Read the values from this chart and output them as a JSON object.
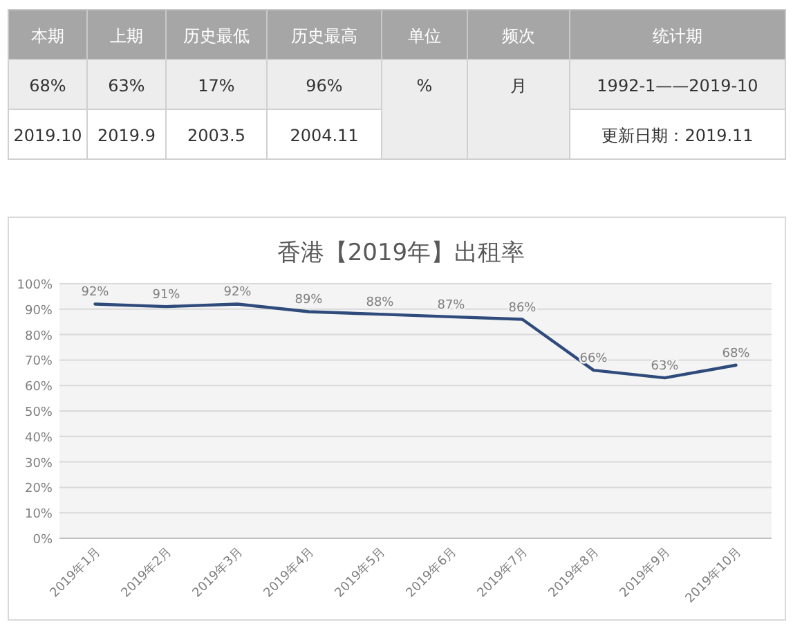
{
  "chart_data": [
    {
      "type": "other",
      "annotations": [
        "本期",
        "上期",
        "历史最低",
        "历史最高",
        "单位",
        "频次",
        "统计期",
        "68%",
        "63%",
        "17%",
        "96%",
        "%",
        "月",
        "1992-1——2019-10",
        "2019.10",
        "2019.9",
        "2003.5",
        "2004.11",
        "更新日期：2019.11"
      ]
    },
    {
      "type": "line",
      "title": "香港【2019年】出租率",
      "categories": [
        "2019年1月",
        "2019年2月",
        "2019年3月",
        "2019年4月",
        "2019年5月",
        "2019年6月",
        "2019年7月",
        "2019年8月",
        "2019年9月",
        "2019年10月"
      ],
      "series": [
        {
          "color": "#2f4b7c",
          "values": [
            92,
            91,
            92,
            89,
            88,
            87,
            86,
            66,
            63,
            68
          ],
          "value_labels": [
            "92%",
            "91%",
            "92%",
            "89%",
            "88%",
            "87%",
            "86%",
            "66%",
            "63%",
            "68%"
          ]
        }
      ],
      "grid": "y",
      "ylim": [
        0,
        100
      ],
      "yticks": [
        {
          "value": 0,
          "label": "0%"
        },
        {
          "value": 10,
          "label": "10%"
        },
        {
          "value": 20,
          "label": "20%"
        },
        {
          "value": 30,
          "label": "30%"
        },
        {
          "value": 40,
          "label": "40%"
        },
        {
          "value": 50,
          "label": "50%"
        },
        {
          "value": 60,
          "label": "60%"
        },
        {
          "value": 70,
          "label": "70%"
        },
        {
          "value": 80,
          "label": "80%"
        },
        {
          "value": 90,
          "label": "90%"
        },
        {
          "value": 100,
          "label": "100%"
        }
      ]
    }
  ]
}
